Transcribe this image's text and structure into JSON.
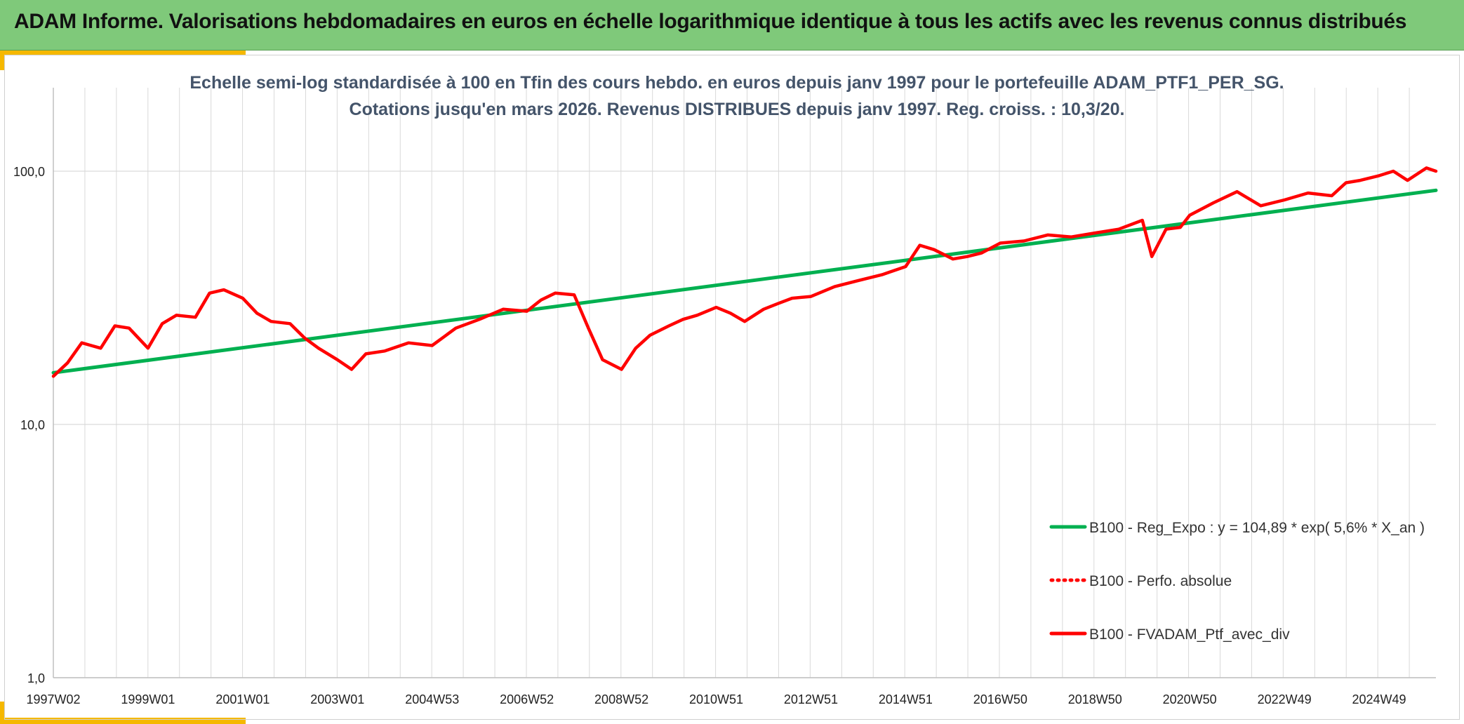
{
  "header": {
    "title": "ADAM Informe. Valorisations hebdomadaires en euros en échelle logarithmique identique à tous les actifs avec les revenus connus distribués"
  },
  "colors": {
    "banner": "#7fc97a",
    "accent": "#f5b800",
    "regression": "#00b050",
    "portfolio": "#ff0000",
    "title_text": "#44546a",
    "grid": "#d9d9d9"
  },
  "chart_data": {
    "type": "line",
    "title": "Echelle semi-log standardisée à 100 en Tfin des cours hebdo. en euros depuis janv 1997 pour le portefeuille ADAM_PTF1_PER_SG.",
    "subtitle": "Cotations jusqu'en mars 2026. Revenus DISTRIBUES depuis janv 1997. Reg. croiss. : 10,3/20.",
    "y_scale": "log",
    "ylim": [
      1,
      200
    ],
    "y_ticks": [
      {
        "value": 1,
        "label": "1,0"
      },
      {
        "value": 10,
        "label": "10,0"
      },
      {
        "value": 100,
        "label": "100,0"
      }
    ],
    "x_range": [
      1997.0,
      2026.2
    ],
    "x_ticks": [
      {
        "x": 1997.0,
        "label": "1997W02"
      },
      {
        "x": 1999.0,
        "label": "1999W01"
      },
      {
        "x": 2001.0,
        "label": "2001W01"
      },
      {
        "x": 2003.0,
        "label": "2003W01"
      },
      {
        "x": 2005.0,
        "label": "2004W53"
      },
      {
        "x": 2007.0,
        "label": "2006W52"
      },
      {
        "x": 2009.0,
        "label": "2008W52"
      },
      {
        "x": 2011.0,
        "label": "2010W51"
      },
      {
        "x": 2013.0,
        "label": "2012W51"
      },
      {
        "x": 2015.0,
        "label": "2014W51"
      },
      {
        "x": 2017.0,
        "label": "2016W50"
      },
      {
        "x": 2019.0,
        "label": "2018W50"
      },
      {
        "x": 2021.0,
        "label": "2020W50"
      },
      {
        "x": 2023.0,
        "label": "2022W49"
      },
      {
        "x": 2025.0,
        "label": "2024W49"
      }
    ],
    "grid": true,
    "legend_position": "bottom-right",
    "series": [
      {
        "name": "B100 - Reg_Expo : y = 104,89 * exp( 5,6% *  X_an )",
        "color": "#00b050",
        "style": "solid",
        "x": [
          1997.0,
          2026.2
        ],
        "y": [
          16.0,
          84.0
        ]
      },
      {
        "name": "B100 - Perfo. absolue",
        "color": "#ff0000",
        "style": "dotted",
        "x": [],
        "y": []
      },
      {
        "name": "B100 - FVADAM_Ptf_avec_div",
        "color": "#ff0000",
        "style": "solid",
        "x": [
          1997.0,
          1997.3,
          1997.6,
          1998.0,
          1998.3,
          1998.6,
          1999.0,
          1999.3,
          1999.6,
          2000.0,
          2000.3,
          2000.6,
          2001.0,
          2001.3,
          2001.6,
          2002.0,
          2002.3,
          2002.6,
          2003.0,
          2003.3,
          2003.6,
          2004.0,
          2004.5,
          2005.0,
          2005.5,
          2006.0,
          2006.5,
          2007.0,
          2007.3,
          2007.6,
          2008.0,
          2008.3,
          2008.6,
          2009.0,
          2009.3,
          2009.6,
          2010.0,
          2010.3,
          2010.6,
          2011.0,
          2011.3,
          2011.6,
          2012.0,
          2012.3,
          2012.6,
          2013.0,
          2013.5,
          2014.0,
          2014.5,
          2015.0,
          2015.3,
          2015.6,
          2016.0,
          2016.3,
          2016.6,
          2017.0,
          2017.5,
          2018.0,
          2018.5,
          2019.0,
          2019.5,
          2020.0,
          2020.2,
          2020.5,
          2020.8,
          2021.0,
          2021.5,
          2022.0,
          2022.5,
          2023.0,
          2023.5,
          2024.0,
          2024.3,
          2024.6,
          2025.0,
          2025.3,
          2025.6,
          2026.0,
          2026.2
        ],
        "y": [
          15.5,
          17.5,
          21.0,
          20.0,
          24.5,
          24.0,
          20.0,
          25.0,
          27.0,
          26.5,
          33.0,
          34.0,
          31.5,
          27.5,
          25.5,
          25.0,
          22.0,
          20.0,
          18.0,
          16.5,
          19.0,
          19.5,
          21.0,
          20.5,
          24.0,
          26.0,
          28.5,
          28.0,
          31.0,
          33.0,
          32.5,
          24.0,
          18.0,
          16.5,
          20.0,
          22.5,
          24.5,
          26.0,
          27.0,
          29.0,
          27.5,
          25.5,
          28.5,
          30.0,
          31.5,
          32.0,
          35.0,
          37.0,
          39.0,
          42.0,
          51.0,
          49.0,
          45.0,
          46.0,
          47.5,
          52.0,
          53.0,
          56.0,
          55.0,
          57.0,
          59.0,
          64.0,
          46.0,
          59.0,
          60.0,
          67.0,
          75.0,
          83.0,
          73.0,
          77.0,
          82.0,
          80.0,
          90.0,
          92.0,
          96.0,
          100.0,
          92.0,
          103.0,
          100.0
        ]
      }
    ]
  }
}
